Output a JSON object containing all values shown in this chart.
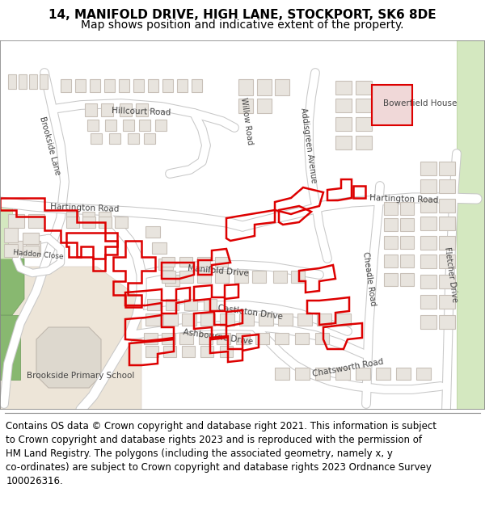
{
  "title_line1": "14, MANIFOLD DRIVE, HIGH LANE, STOCKPORT, SK6 8DE",
  "title_line2": "Map shows position and indicative extent of the property.",
  "footer_lines": [
    "Contains OS data © Crown copyright and database right 2021. This information is subject",
    "to Crown copyright and database rights 2023 and is reproduced with the permission of",
    "HM Land Registry. The polygons (including the associated geometry, namely x, y",
    "co-ordinates) are subject to Crown copyright and database rights 2023 Ordnance Survey",
    "100026316."
  ],
  "title_fontsize": 11,
  "subtitle_fontsize": 10,
  "footer_fontsize": 8.5,
  "fig_width": 6.0,
  "fig_height": 6.25,
  "map_bg": "#f7f4f0",
  "building_fill": "#e8e4de",
  "building_edge": "#c8c0b8",
  "road_fill": "#ffffff",
  "road_edge": "#d0ccc8",
  "green_light": "#d4e8c0",
  "green_dark": "#88b870",
  "beige_fill": "#e8e0d0",
  "pink_fill": "#f0d8d0",
  "highlight_color": "#dd0000",
  "highlight_fill": "none",
  "text_dark": "#333333",
  "text_road": "#555555"
}
